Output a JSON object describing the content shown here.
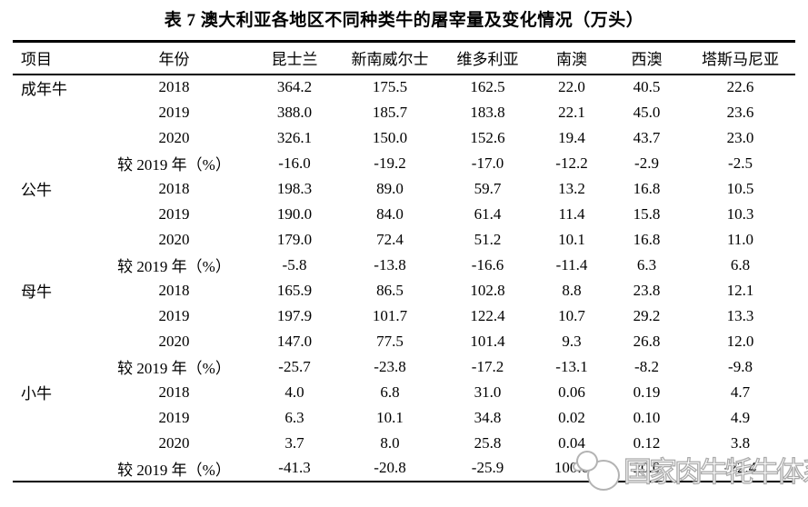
{
  "page": {
    "background": "#ffffff",
    "text_color": "#000000"
  },
  "title": "表 7 澳大利亚各地区不同种类牛的屠宰量及变化情况（万头）",
  "watermark": {
    "text": "国家肉牛牦牛体系",
    "color": "#b3b3b3",
    "logo": "cow-head-logo"
  },
  "chart_data": {
    "type": "table",
    "title": "表 7 澳大利亚各地区不同种类牛的屠宰量及变化情况（万头）",
    "columns": [
      "项目",
      "年份",
      "昆士兰",
      "新南威尔士",
      "维多利亚",
      "南澳",
      "西澳",
      "塔斯马尼亚"
    ],
    "groups": [
      {
        "item": "成年牛",
        "rows": [
          {
            "year": "2018",
            "values": [
              "364.2",
              "175.5",
              "162.5",
              "22.0",
              "40.5",
              "22.6"
            ]
          },
          {
            "year": "2019",
            "values": [
              "388.0",
              "185.7",
              "183.8",
              "22.1",
              "45.0",
              "23.6"
            ]
          },
          {
            "year": "2020",
            "values": [
              "326.1",
              "150.0",
              "152.6",
              "19.4",
              "43.7",
              "23.0"
            ]
          },
          {
            "year": "较 2019 年（%）",
            "values": [
              "-16.0",
              "-19.2",
              "-17.0",
              "-12.2",
              "-2.9",
              "-2.5"
            ]
          }
        ]
      },
      {
        "item": "公牛",
        "rows": [
          {
            "year": "2018",
            "values": [
              "198.3",
              "89.0",
              "59.7",
              "13.2",
              "16.8",
              "10.5"
            ]
          },
          {
            "year": "2019",
            "values": [
              "190.0",
              "84.0",
              "61.4",
              "11.4",
              "15.8",
              "10.3"
            ]
          },
          {
            "year": "2020",
            "values": [
              "179.0",
              "72.4",
              "51.2",
              "10.1",
              "16.8",
              "11.0"
            ]
          },
          {
            "year": "较 2019 年（%）",
            "values": [
              "-5.8",
              "-13.8",
              "-16.6",
              "-11.4",
              "6.3",
              "6.8"
            ]
          }
        ]
      },
      {
        "item": "母牛",
        "rows": [
          {
            "year": "2018",
            "values": [
              "165.9",
              "86.5",
              "102.8",
              "8.8",
              "23.8",
              "12.1"
            ]
          },
          {
            "year": "2019",
            "values": [
              "197.9",
              "101.7",
              "122.4",
              "10.7",
              "29.2",
              "13.3"
            ]
          },
          {
            "year": "2020",
            "values": [
              "147.0",
              "77.5",
              "101.4",
              "9.3",
              "26.8",
              "12.0"
            ]
          },
          {
            "year": "较 2019 年（%）",
            "values": [
              "-25.7",
              "-23.8",
              "-17.2",
              "-13.1",
              "-8.2",
              "-9.8"
            ]
          }
        ]
      },
      {
        "item": "小牛",
        "rows": [
          {
            "year": "2018",
            "values": [
              "4.0",
              "6.8",
              "31.0",
              "0.06",
              "0.19",
              "4.7"
            ]
          },
          {
            "year": "2019",
            "values": [
              "6.3",
              "10.1",
              "34.8",
              "0.02",
              "0.10",
              "4.9"
            ]
          },
          {
            "year": "2020",
            "values": [
              "3.7",
              "8.0",
              "25.8",
              "0.04",
              "0.12",
              "3.8"
            ]
          },
          {
            "year": "较 2019 年（%）",
            "values": [
              "-41.3",
              "-20.8",
              "-25.9",
              "100.0",
              "20.0",
              "-22.4"
            ]
          }
        ]
      }
    ]
  }
}
